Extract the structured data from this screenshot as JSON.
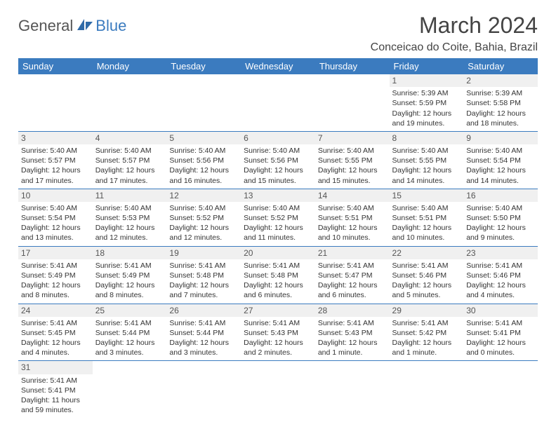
{
  "logo": {
    "part1": "General",
    "part2": "Blue"
  },
  "title": "March 2024",
  "location": "Conceicao do Coite, Bahia, Brazil",
  "colors": {
    "header_bg": "#3b7bbf",
    "header_fg": "#ffffff",
    "rule": "#3b7bbf",
    "daynum_bg": "#f0f0f0"
  },
  "weekdays": [
    "Sunday",
    "Monday",
    "Tuesday",
    "Wednesday",
    "Thursday",
    "Friday",
    "Saturday"
  ],
  "weeks": [
    [
      {
        "day": "",
        "lines": []
      },
      {
        "day": "",
        "lines": []
      },
      {
        "day": "",
        "lines": []
      },
      {
        "day": "",
        "lines": []
      },
      {
        "day": "",
        "lines": []
      },
      {
        "day": "1",
        "lines": [
          "Sunrise: 5:39 AM",
          "Sunset: 5:59 PM",
          "Daylight: 12 hours",
          "and 19 minutes."
        ]
      },
      {
        "day": "2",
        "lines": [
          "Sunrise: 5:39 AM",
          "Sunset: 5:58 PM",
          "Daylight: 12 hours",
          "and 18 minutes."
        ]
      }
    ],
    [
      {
        "day": "3",
        "lines": [
          "Sunrise: 5:40 AM",
          "Sunset: 5:57 PM",
          "Daylight: 12 hours",
          "and 17 minutes."
        ]
      },
      {
        "day": "4",
        "lines": [
          "Sunrise: 5:40 AM",
          "Sunset: 5:57 PM",
          "Daylight: 12 hours",
          "and 17 minutes."
        ]
      },
      {
        "day": "5",
        "lines": [
          "Sunrise: 5:40 AM",
          "Sunset: 5:56 PM",
          "Daylight: 12 hours",
          "and 16 minutes."
        ]
      },
      {
        "day": "6",
        "lines": [
          "Sunrise: 5:40 AM",
          "Sunset: 5:56 PM",
          "Daylight: 12 hours",
          "and 15 minutes."
        ]
      },
      {
        "day": "7",
        "lines": [
          "Sunrise: 5:40 AM",
          "Sunset: 5:55 PM",
          "Daylight: 12 hours",
          "and 15 minutes."
        ]
      },
      {
        "day": "8",
        "lines": [
          "Sunrise: 5:40 AM",
          "Sunset: 5:55 PM",
          "Daylight: 12 hours",
          "and 14 minutes."
        ]
      },
      {
        "day": "9",
        "lines": [
          "Sunrise: 5:40 AM",
          "Sunset: 5:54 PM",
          "Daylight: 12 hours",
          "and 14 minutes."
        ]
      }
    ],
    [
      {
        "day": "10",
        "lines": [
          "Sunrise: 5:40 AM",
          "Sunset: 5:54 PM",
          "Daylight: 12 hours",
          "and 13 minutes."
        ]
      },
      {
        "day": "11",
        "lines": [
          "Sunrise: 5:40 AM",
          "Sunset: 5:53 PM",
          "Daylight: 12 hours",
          "and 12 minutes."
        ]
      },
      {
        "day": "12",
        "lines": [
          "Sunrise: 5:40 AM",
          "Sunset: 5:52 PM",
          "Daylight: 12 hours",
          "and 12 minutes."
        ]
      },
      {
        "day": "13",
        "lines": [
          "Sunrise: 5:40 AM",
          "Sunset: 5:52 PM",
          "Daylight: 12 hours",
          "and 11 minutes."
        ]
      },
      {
        "day": "14",
        "lines": [
          "Sunrise: 5:40 AM",
          "Sunset: 5:51 PM",
          "Daylight: 12 hours",
          "and 10 minutes."
        ]
      },
      {
        "day": "15",
        "lines": [
          "Sunrise: 5:40 AM",
          "Sunset: 5:51 PM",
          "Daylight: 12 hours",
          "and 10 minutes."
        ]
      },
      {
        "day": "16",
        "lines": [
          "Sunrise: 5:40 AM",
          "Sunset: 5:50 PM",
          "Daylight: 12 hours",
          "and 9 minutes."
        ]
      }
    ],
    [
      {
        "day": "17",
        "lines": [
          "Sunrise: 5:41 AM",
          "Sunset: 5:49 PM",
          "Daylight: 12 hours",
          "and 8 minutes."
        ]
      },
      {
        "day": "18",
        "lines": [
          "Sunrise: 5:41 AM",
          "Sunset: 5:49 PM",
          "Daylight: 12 hours",
          "and 8 minutes."
        ]
      },
      {
        "day": "19",
        "lines": [
          "Sunrise: 5:41 AM",
          "Sunset: 5:48 PM",
          "Daylight: 12 hours",
          "and 7 minutes."
        ]
      },
      {
        "day": "20",
        "lines": [
          "Sunrise: 5:41 AM",
          "Sunset: 5:48 PM",
          "Daylight: 12 hours",
          "and 6 minutes."
        ]
      },
      {
        "day": "21",
        "lines": [
          "Sunrise: 5:41 AM",
          "Sunset: 5:47 PM",
          "Daylight: 12 hours",
          "and 6 minutes."
        ]
      },
      {
        "day": "22",
        "lines": [
          "Sunrise: 5:41 AM",
          "Sunset: 5:46 PM",
          "Daylight: 12 hours",
          "and 5 minutes."
        ]
      },
      {
        "day": "23",
        "lines": [
          "Sunrise: 5:41 AM",
          "Sunset: 5:46 PM",
          "Daylight: 12 hours",
          "and 4 minutes."
        ]
      }
    ],
    [
      {
        "day": "24",
        "lines": [
          "Sunrise: 5:41 AM",
          "Sunset: 5:45 PM",
          "Daylight: 12 hours",
          "and 4 minutes."
        ]
      },
      {
        "day": "25",
        "lines": [
          "Sunrise: 5:41 AM",
          "Sunset: 5:44 PM",
          "Daylight: 12 hours",
          "and 3 minutes."
        ]
      },
      {
        "day": "26",
        "lines": [
          "Sunrise: 5:41 AM",
          "Sunset: 5:44 PM",
          "Daylight: 12 hours",
          "and 3 minutes."
        ]
      },
      {
        "day": "27",
        "lines": [
          "Sunrise: 5:41 AM",
          "Sunset: 5:43 PM",
          "Daylight: 12 hours",
          "and 2 minutes."
        ]
      },
      {
        "day": "28",
        "lines": [
          "Sunrise: 5:41 AM",
          "Sunset: 5:43 PM",
          "Daylight: 12 hours",
          "and 1 minute."
        ]
      },
      {
        "day": "29",
        "lines": [
          "Sunrise: 5:41 AM",
          "Sunset: 5:42 PM",
          "Daylight: 12 hours",
          "and 1 minute."
        ]
      },
      {
        "day": "30",
        "lines": [
          "Sunrise: 5:41 AM",
          "Sunset: 5:41 PM",
          "Daylight: 12 hours",
          "and 0 minutes."
        ]
      }
    ],
    [
      {
        "day": "31",
        "lines": [
          "Sunrise: 5:41 AM",
          "Sunset: 5:41 PM",
          "Daylight: 11 hours",
          "and 59 minutes."
        ]
      },
      {
        "day": "",
        "lines": []
      },
      {
        "day": "",
        "lines": []
      },
      {
        "day": "",
        "lines": []
      },
      {
        "day": "",
        "lines": []
      },
      {
        "day": "",
        "lines": []
      },
      {
        "day": "",
        "lines": []
      }
    ]
  ]
}
